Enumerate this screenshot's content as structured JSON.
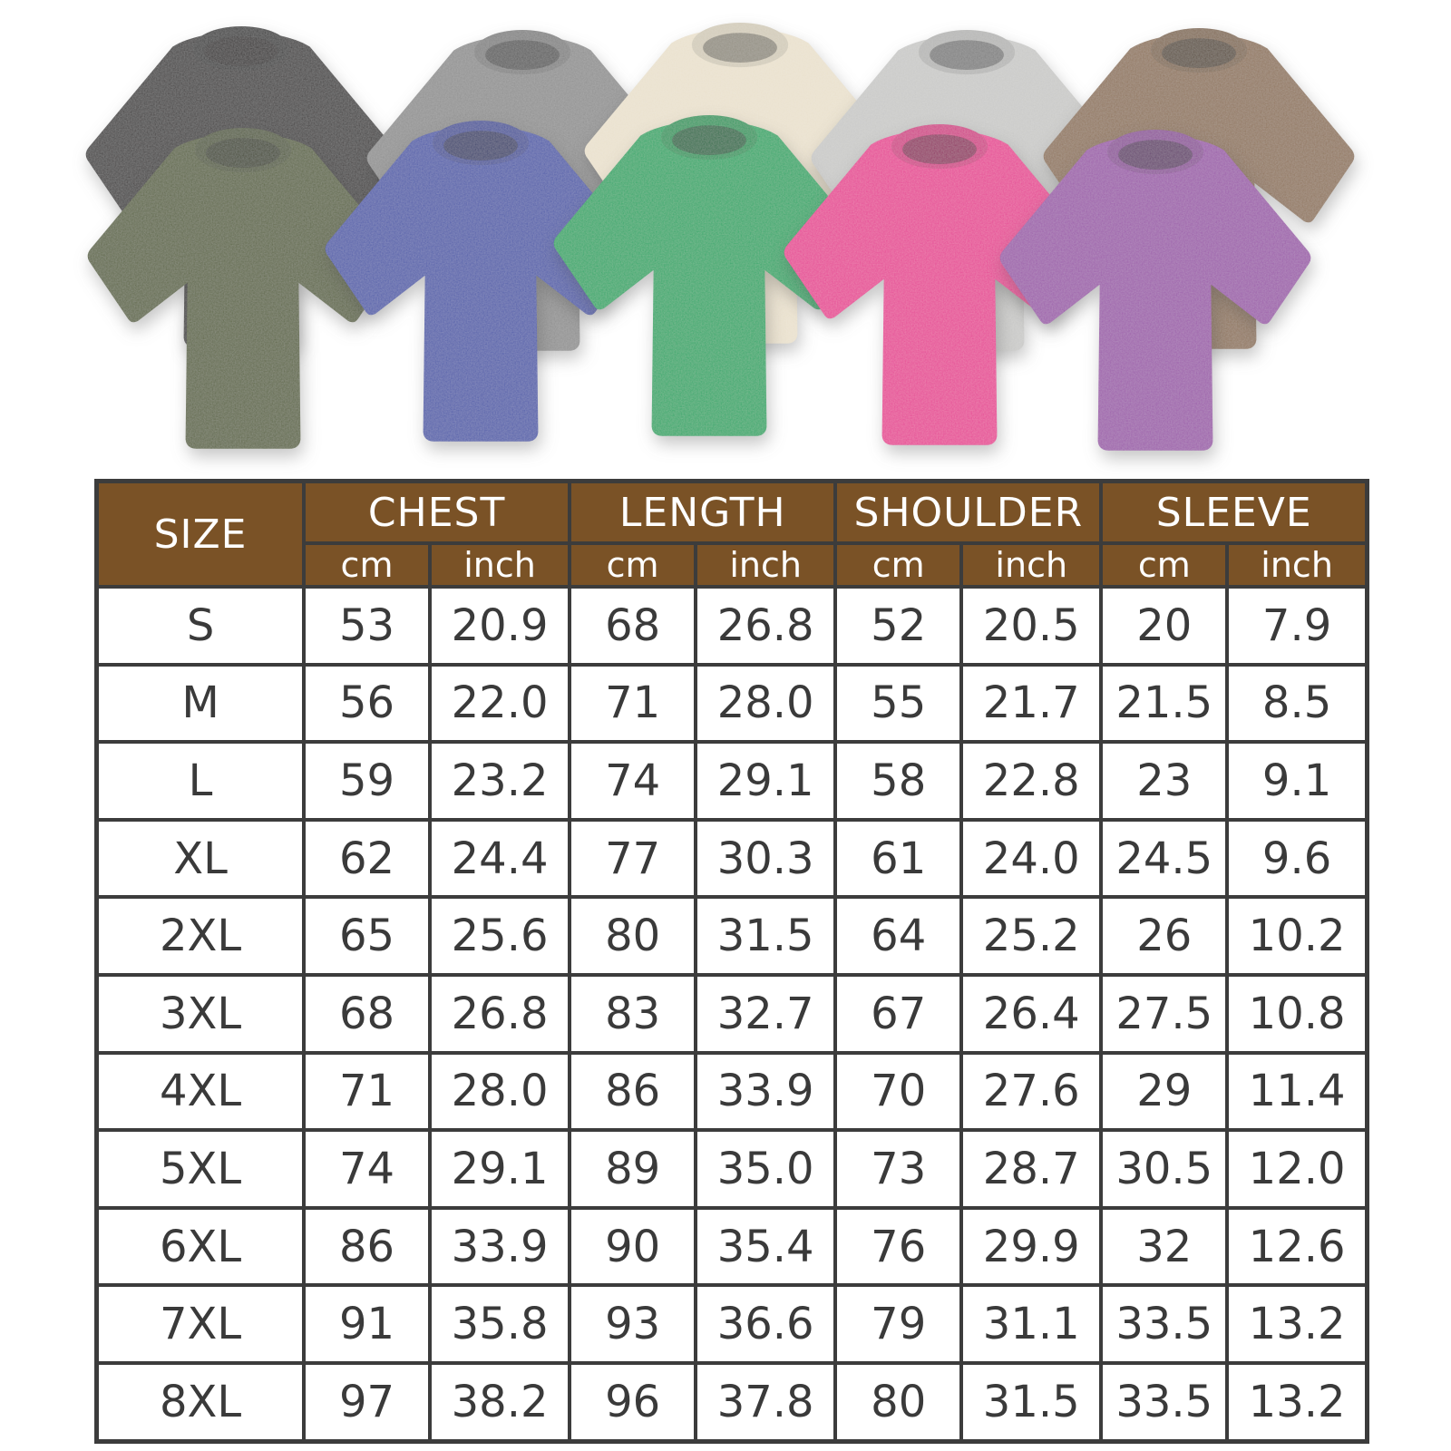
{
  "product_gallery": {
    "description": "vintage washed oversized t-shirts in ten colors",
    "shirts": [
      {
        "name": "black",
        "color": "#343232"
      },
      {
        "name": "gray",
        "color": "#8d8d8d"
      },
      {
        "name": "beige",
        "color": "#e9e0cc"
      },
      {
        "name": "light-gray",
        "color": "#c8c8c6"
      },
      {
        "name": "brown",
        "color": "#8d7156"
      },
      {
        "name": "army-green",
        "color": "#57603a"
      },
      {
        "name": "blue",
        "color": "#4a57a8"
      },
      {
        "name": "green",
        "color": "#1fa563"
      },
      {
        "name": "rose",
        "color": "#e63a92"
      },
      {
        "name": "purple",
        "color": "#9a56a8"
      }
    ]
  },
  "size_chart": {
    "corner_label": "SIZE",
    "groups": [
      {
        "label": "CHEST",
        "units": [
          "cm",
          "inch"
        ]
      },
      {
        "label": "LENGTH",
        "units": [
          "cm",
          "inch"
        ]
      },
      {
        "label": "SHOULDER",
        "units": [
          "cm",
          "inch"
        ]
      },
      {
        "label": "SLEEVE",
        "units": [
          "cm",
          "inch"
        ]
      }
    ],
    "rows": [
      {
        "size": "S",
        "values": [
          "53",
          "20.9",
          "68",
          "26.8",
          "52",
          "20.5",
          "20",
          "7.9"
        ]
      },
      {
        "size": "M",
        "values": [
          "56",
          "22.0",
          "71",
          "28.0",
          "55",
          "21.7",
          "21.5",
          "8.5"
        ]
      },
      {
        "size": "L",
        "values": [
          "59",
          "23.2",
          "74",
          "29.1",
          "58",
          "22.8",
          "23",
          "9.1"
        ]
      },
      {
        "size": "XL",
        "values": [
          "62",
          "24.4",
          "77",
          "30.3",
          "61",
          "24.0",
          "24.5",
          "9.6"
        ]
      },
      {
        "size": "2XL",
        "values": [
          "65",
          "25.6",
          "80",
          "31.5",
          "64",
          "25.2",
          "26",
          "10.2"
        ]
      },
      {
        "size": "3XL",
        "values": [
          "68",
          "26.8",
          "83",
          "32.7",
          "67",
          "26.4",
          "27.5",
          "10.8"
        ]
      },
      {
        "size": "4XL",
        "values": [
          "71",
          "28.0",
          "86",
          "33.9",
          "70",
          "27.6",
          "29",
          "11.4"
        ]
      },
      {
        "size": "5XL",
        "values": [
          "74",
          "29.1",
          "89",
          "35.0",
          "73",
          "28.7",
          "30.5",
          "12.0"
        ]
      },
      {
        "size": "6XL",
        "values": [
          "86",
          "33.9",
          "90",
          "35.4",
          "76",
          "29.9",
          "32",
          "12.6"
        ]
      },
      {
        "size": "7XL",
        "values": [
          "91",
          "35.8",
          "93",
          "36.6",
          "79",
          "31.1",
          "33.5",
          "13.2"
        ]
      },
      {
        "size": "8XL",
        "values": [
          "97",
          "38.2",
          "96",
          "37.8",
          "80",
          "31.5",
          "33.5",
          "13.2"
        ]
      }
    ],
    "colors": {
      "header_bg": "#7a5226",
      "header_text": "#ffffff",
      "border": "#3c3c3c",
      "cell_text": "#3a3a3a"
    }
  }
}
